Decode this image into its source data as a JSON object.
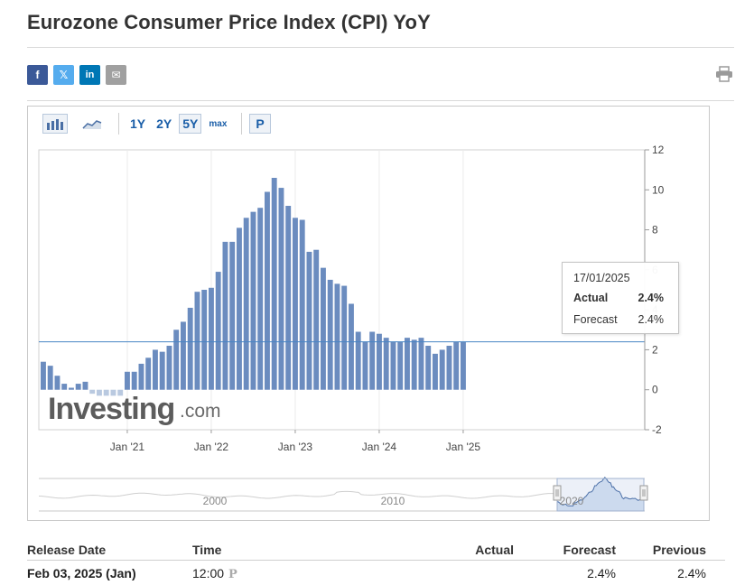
{
  "title": "Eurozone Consumer Price Index (CPI) YoY",
  "share": {
    "facebook": "f",
    "twitter": "𝕏",
    "linkedin": "in",
    "email": "✉"
  },
  "toolbar": {
    "ranges": [
      "1Y",
      "2Y",
      "5Y",
      "max"
    ],
    "active_range": "5Y",
    "p_button": "P"
  },
  "chart_data": {
    "type": "bar",
    "title": "",
    "xlabel": "",
    "ylabel": "",
    "ylim": [
      -2,
      12
    ],
    "y_ticks": [
      "12",
      "10",
      "8",
      "6",
      "4",
      "2",
      "0",
      "-2"
    ],
    "x_tick_labels": [
      "Jan '21",
      "Jan '22",
      "Jan '23",
      "Jan '24",
      "Jan '25"
    ],
    "categories": [
      "2020-01",
      "2020-02",
      "2020-03",
      "2020-04",
      "2020-05",
      "2020-06",
      "2020-07",
      "2020-08",
      "2020-09",
      "2020-10",
      "2020-11",
      "2020-12",
      "2021-01",
      "2021-02",
      "2021-03",
      "2021-04",
      "2021-05",
      "2021-06",
      "2021-07",
      "2021-08",
      "2021-09",
      "2021-10",
      "2021-11",
      "2021-12",
      "2022-01",
      "2022-02",
      "2022-03",
      "2022-04",
      "2022-05",
      "2022-06",
      "2022-07",
      "2022-08",
      "2022-09",
      "2022-10",
      "2022-11",
      "2022-12",
      "2023-01",
      "2023-02",
      "2023-03",
      "2023-04",
      "2023-05",
      "2023-06",
      "2023-07",
      "2023-08",
      "2023-09",
      "2023-10",
      "2023-11",
      "2023-12",
      "2024-01",
      "2024-02",
      "2024-03",
      "2024-04",
      "2024-05",
      "2024-06",
      "2024-07",
      "2024-08",
      "2024-09",
      "2024-10",
      "2024-11",
      "2024-12",
      "2025-01"
    ],
    "series": [
      {
        "name": "Actual",
        "values": [
          1.4,
          1.2,
          0.7,
          0.3,
          0.1,
          0.3,
          0.4,
          -0.2,
          -0.3,
          -0.3,
          -0.3,
          -0.3,
          0.9,
          0.9,
          1.3,
          1.6,
          2.0,
          1.9,
          2.2,
          3.0,
          3.4,
          4.1,
          4.9,
          5.0,
          5.1,
          5.9,
          7.4,
          7.4,
          8.1,
          8.6,
          8.9,
          9.1,
          9.9,
          10.6,
          10.1,
          9.2,
          8.6,
          8.5,
          6.9,
          7.0,
          6.1,
          5.5,
          5.3,
          5.2,
          4.3,
          2.9,
          2.4,
          2.9,
          2.8,
          2.6,
          2.4,
          2.4,
          2.6,
          2.5,
          2.6,
          2.2,
          1.8,
          2.0,
          2.2,
          2.4,
          2.4
        ]
      }
    ],
    "reference_line": 2.4,
    "navigator_labels": [
      "2000",
      "2010",
      "2020"
    ]
  },
  "watermark": {
    "brand": "Investing",
    "suffix": ".com"
  },
  "tooltip": {
    "date": "17/01/2025",
    "actual_label": "Actual",
    "actual_value": "2.4%",
    "forecast_label": "Forecast",
    "forecast_value": "2.4%"
  },
  "release_table": {
    "headers": {
      "date": "Release Date",
      "time": "Time",
      "actual": "Actual",
      "forecast": "Forecast",
      "previous": "Previous"
    },
    "rows": [
      {
        "date": "Feb 03, 2025 (Jan)",
        "time": "12:00",
        "actual": "",
        "forecast": "2.4%",
        "previous": "2.4%"
      }
    ]
  },
  "colors": {
    "bar": "#6b8cbf",
    "bar_negative": "#b9c9e0",
    "line": "#4a86c5",
    "link": "#1a5ea8"
  }
}
